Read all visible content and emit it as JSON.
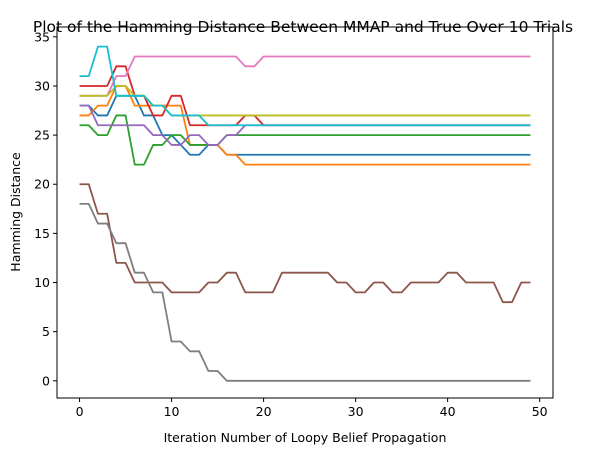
{
  "chart_data": {
    "type": "line",
    "title": "Plot of the Hamming Distance Between MMAP and True Over 10 Trials",
    "xlabel": "Iteration Number of Loopy Belief Propagation",
    "ylabel": "Hamming Distance",
    "xlim": [
      -2.45,
      51.45
    ],
    "ylim": [
      -1.75,
      36.0
    ],
    "xticks": [
      0,
      10,
      20,
      30,
      40,
      50
    ],
    "yticks": [
      0,
      5,
      10,
      15,
      20,
      25,
      30,
      35
    ],
    "grid": false,
    "legend": "none",
    "x": [
      0,
      1,
      2,
      3,
      4,
      5,
      6,
      7,
      8,
      9,
      10,
      11,
      12,
      13,
      14,
      15,
      16,
      17,
      18,
      19,
      20,
      21,
      22,
      23,
      24,
      25,
      26,
      27,
      28,
      29,
      30,
      31,
      32,
      33,
      34,
      35,
      36,
      37,
      38,
      39,
      40,
      41,
      42,
      43,
      44,
      45,
      46,
      47,
      48,
      49
    ],
    "series": [
      {
        "color": "#1f77b4",
        "values": [
          28,
          28,
          27,
          27,
          29,
          29,
          29,
          27,
          27,
          25,
          25,
          24,
          23,
          23,
          24,
          24,
          23,
          23,
          23,
          23,
          23,
          23,
          23,
          23,
          23,
          23,
          23,
          23,
          23,
          23,
          23,
          23,
          23,
          23,
          23,
          23,
          23,
          23,
          23,
          23,
          23,
          23,
          23,
          23,
          23,
          23,
          23,
          23,
          23,
          23
        ]
      },
      {
        "color": "#ff7f0e",
        "values": [
          27,
          27,
          28,
          28,
          30,
          30,
          28,
          28,
          28,
          28,
          28,
          28,
          24,
          24,
          24,
          24,
          23,
          23,
          22,
          22,
          22,
          22,
          22,
          22,
          22,
          22,
          22,
          22,
          22,
          22,
          22,
          22,
          22,
          22,
          22,
          22,
          22,
          22,
          22,
          22,
          22,
          22,
          22,
          22,
          22,
          22,
          22,
          22,
          22,
          22
        ]
      },
      {
        "color": "#2ca02c",
        "values": [
          26,
          26,
          25,
          25,
          27,
          27,
          22,
          22,
          24,
          24,
          25,
          25,
          24,
          24,
          24,
          24,
          25,
          25,
          25,
          25,
          25,
          25,
          25,
          25,
          25,
          25,
          25,
          25,
          25,
          25,
          25,
          25,
          25,
          25,
          25,
          25,
          25,
          25,
          25,
          25,
          25,
          25,
          25,
          25,
          25,
          25,
          25,
          25,
          25,
          25
        ]
      },
      {
        "color": "#d62728",
        "values": [
          30,
          30,
          30,
          30,
          32,
          32,
          29,
          29,
          27,
          27,
          29,
          29,
          26,
          26,
          26,
          26,
          26,
          26,
          27,
          27,
          26,
          26,
          26,
          26,
          26,
          26,
          26,
          26,
          26,
          26,
          26,
          26,
          26,
          26,
          26,
          26,
          26,
          26,
          26,
          26,
          26,
          26,
          26,
          26,
          26,
          26,
          26,
          26,
          26,
          26
        ]
      },
      {
        "color": "#9467bd",
        "values": [
          28,
          28,
          26,
          26,
          26,
          26,
          26,
          26,
          25,
          25,
          24,
          24,
          25,
          25,
          24,
          24,
          25,
          25,
          26,
          26,
          26,
          26,
          26,
          26,
          26,
          26,
          26,
          26,
          26,
          26,
          26,
          26,
          26,
          26,
          26,
          26,
          26,
          26,
          26,
          26,
          26,
          26,
          26,
          26,
          26,
          26,
          26,
          26,
          26,
          26
        ]
      },
      {
        "color": "#8c564b",
        "values": [
          20,
          20,
          17,
          17,
          12,
          12,
          10,
          10,
          10,
          10,
          9,
          9,
          9,
          9,
          10,
          10,
          11,
          11,
          9,
          9,
          9,
          9,
          11,
          11,
          11,
          11,
          11,
          11,
          10,
          10,
          9,
          9,
          10,
          10,
          9,
          9,
          10,
          10,
          10,
          10,
          11,
          11,
          10,
          10,
          10,
          10,
          8,
          8,
          10,
          10
        ]
      },
      {
        "color": "#e377c2",
        "values": [
          29,
          29,
          29,
          29,
          31,
          31,
          33,
          33,
          33,
          33,
          33,
          33,
          33,
          33,
          33,
          33,
          33,
          33,
          32,
          32,
          33,
          33,
          33,
          33,
          33,
          33,
          33,
          33,
          33,
          33,
          33,
          33,
          33,
          33,
          33,
          33,
          33,
          33,
          33,
          33,
          33,
          33,
          33,
          33,
          33,
          33,
          33,
          33,
          33,
          33
        ]
      },
      {
        "color": "#7f7f7f",
        "values": [
          18,
          18,
          16,
          16,
          14,
          14,
          11,
          11,
          9,
          9,
          4,
          4,
          3,
          3,
          1,
          1,
          0,
          0,
          0,
          0,
          0,
          0,
          0,
          0,
          0,
          0,
          0,
          0,
          0,
          0,
          0,
          0,
          0,
          0,
          0,
          0,
          0,
          0,
          0,
          0,
          0,
          0,
          0,
          0,
          0,
          0,
          0,
          0,
          0,
          0
        ]
      },
      {
        "color": "#bcbd22",
        "values": [
          29,
          29,
          29,
          29,
          30,
          30,
          29,
          29,
          28,
          28,
          27,
          27,
          27,
          27,
          27,
          27,
          27,
          27,
          27,
          27,
          27,
          27,
          27,
          27,
          27,
          27,
          27,
          27,
          27,
          27,
          27,
          27,
          27,
          27,
          27,
          27,
          27,
          27,
          27,
          27,
          27,
          27,
          27,
          27,
          27,
          27,
          27,
          27,
          27,
          27
        ]
      },
      {
        "color": "#17becf",
        "values": [
          31,
          31,
          34,
          34,
          29,
          29,
          29,
          29,
          28,
          28,
          27,
          27,
          27,
          27,
          26,
          26,
          26,
          26,
          26,
          26,
          26,
          26,
          26,
          26,
          26,
          26,
          26,
          26,
          26,
          26,
          26,
          26,
          26,
          26,
          26,
          26,
          26,
          26,
          26,
          26,
          26,
          26,
          26,
          26,
          26,
          26,
          26,
          26,
          26,
          26
        ]
      }
    ]
  }
}
